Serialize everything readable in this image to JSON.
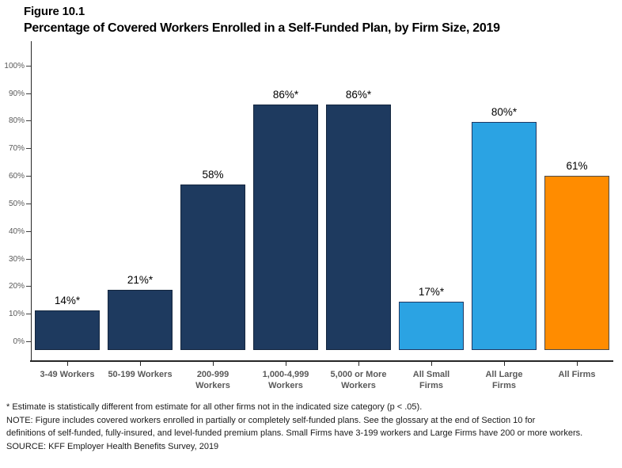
{
  "figure": {
    "label": "Figure 10.1",
    "title": "Percentage of Covered Workers Enrolled in a Self-Funded Plan, by Firm Size, 2019"
  },
  "chart_data": {
    "type": "bar",
    "categories": [
      "3-49 Workers",
      "50-199 Workers",
      "200-999\nWorkers",
      "1,000-4,999\nWorkers",
      "5,000 or More\nWorkers",
      "All Small\nFirms",
      "All Large\nFirms",
      "All Firms"
    ],
    "values": [
      14,
      21,
      58,
      86,
      86,
      17,
      80,
      61
    ],
    "value_labels": [
      "14%*",
      "21%*",
      "58%",
      "86%*",
      "86%*",
      "17%*",
      "80%*",
      "61%"
    ],
    "bar_colors": [
      "#1E3A5F",
      "#1E3A5F",
      "#1E3A5F",
      "#1E3A5F",
      "#1E3A5F",
      "#2BA3E3",
      "#2BA3E3",
      "#FF8C00"
    ],
    "bar_border_colors": [
      "#14263E",
      "#14263E",
      "#14263E",
      "#14263E",
      "#14263E",
      "#1F3864",
      "#1F3864",
      "#4D4D4D"
    ],
    "title": "Percentage of Covered Workers Enrolled in a Self-Funded Plan, by Firm Size, 2019",
    "xlabel": "",
    "ylabel": "",
    "ylim": [
      0,
      100
    ],
    "y_tick_labels": [
      "0%",
      "10%",
      "20%",
      "30%",
      "40%",
      "50%",
      "60%",
      "70%",
      "80%",
      "90%",
      "100%"
    ],
    "grid": false,
    "legend": "none"
  },
  "footnotes": [
    "* Estimate is statistically different from estimate for all other firms not in the indicated size category (p < .05).",
    "NOTE: Figure includes covered workers enrolled in partially or completely self-funded plans. See the glossary at the end of Section 10 for",
    "definitions of self-funded, fully-insured, and level-funded premium plans. Small Firms have 3-199 workers and Large Firms have 200 or more workers.",
    "SOURCE: KFF Employer Health Benefits Survey, 2019"
  ]
}
